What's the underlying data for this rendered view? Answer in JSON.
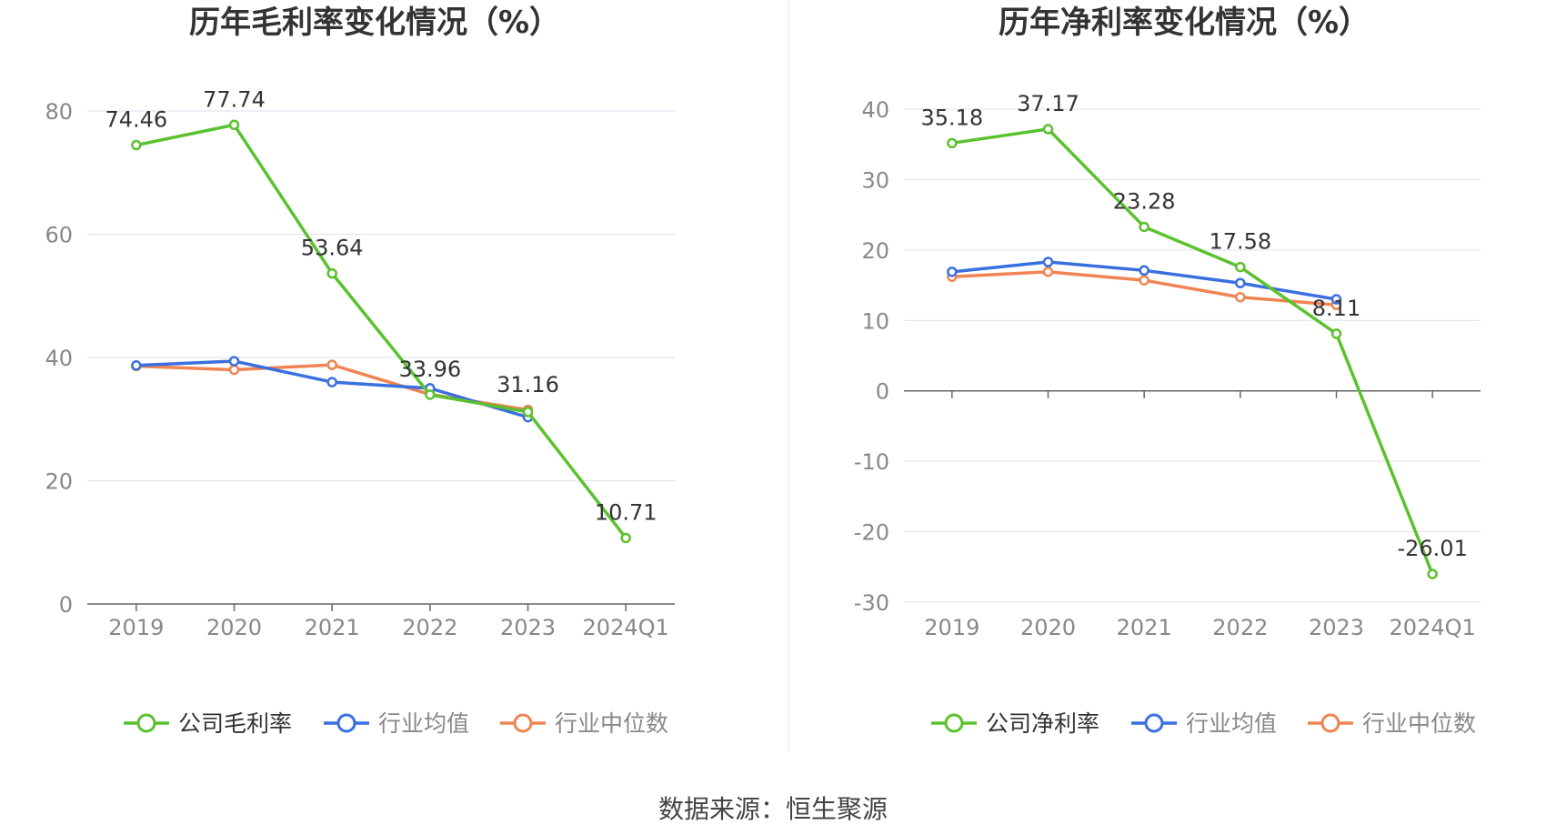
{
  "source_label": "数据来源：恒生聚源",
  "colors": {
    "company": "#5ac22e",
    "avg": "#3a6fdf",
    "median": "#f08453",
    "grid": "#dde2ef",
    "axis": "#666666",
    "text": "#333333",
    "tick": "#888888"
  },
  "chart_data": [
    {
      "type": "line",
      "title": "历年毛利率变化情况（%）",
      "categories": [
        "2019",
        "2020",
        "2021",
        "2022",
        "2023",
        "2024Q1"
      ],
      "ylim": [
        0,
        80
      ],
      "yticks": [
        0,
        20,
        40,
        60,
        80
      ],
      "grid": true,
      "legend_position": "bottom",
      "series": [
        {
          "name": "公司毛利率",
          "key": "company",
          "values": [
            74.46,
            77.74,
            53.64,
            33.96,
            31.16,
            10.71
          ],
          "labels": [
            "74.46",
            "77.74",
            "53.64",
            "33.96",
            "31.16",
            "10.71"
          ]
        },
        {
          "name": "行业均值",
          "key": "avg",
          "values": [
            38.7,
            39.4,
            36.0,
            35.0,
            30.3,
            null
          ]
        },
        {
          "name": "行业中位数",
          "key": "median",
          "values": [
            38.6,
            38.0,
            38.8,
            34.0,
            31.5,
            null
          ]
        }
      ]
    },
    {
      "type": "line",
      "title": "历年净利率变化情况（%）",
      "categories": [
        "2019",
        "2020",
        "2021",
        "2022",
        "2023",
        "2024Q1"
      ],
      "ylim": [
        -30,
        40
      ],
      "yticks": [
        -30,
        -20,
        -10,
        0,
        10,
        20,
        30,
        40
      ],
      "grid": true,
      "legend_position": "bottom",
      "series": [
        {
          "name": "公司净利率",
          "key": "company",
          "values": [
            35.18,
            37.17,
            23.28,
            17.58,
            8.11,
            -26.01
          ],
          "labels": [
            "35.18",
            "37.17",
            "23.28",
            "17.58",
            "8.11",
            "-26.01"
          ]
        },
        {
          "name": "行业均值",
          "key": "avg",
          "values": [
            16.9,
            18.3,
            17.1,
            15.3,
            13.0,
            null
          ]
        },
        {
          "name": "行业中位数",
          "key": "median",
          "values": [
            16.2,
            16.9,
            15.7,
            13.3,
            12.2,
            null
          ]
        }
      ]
    }
  ]
}
